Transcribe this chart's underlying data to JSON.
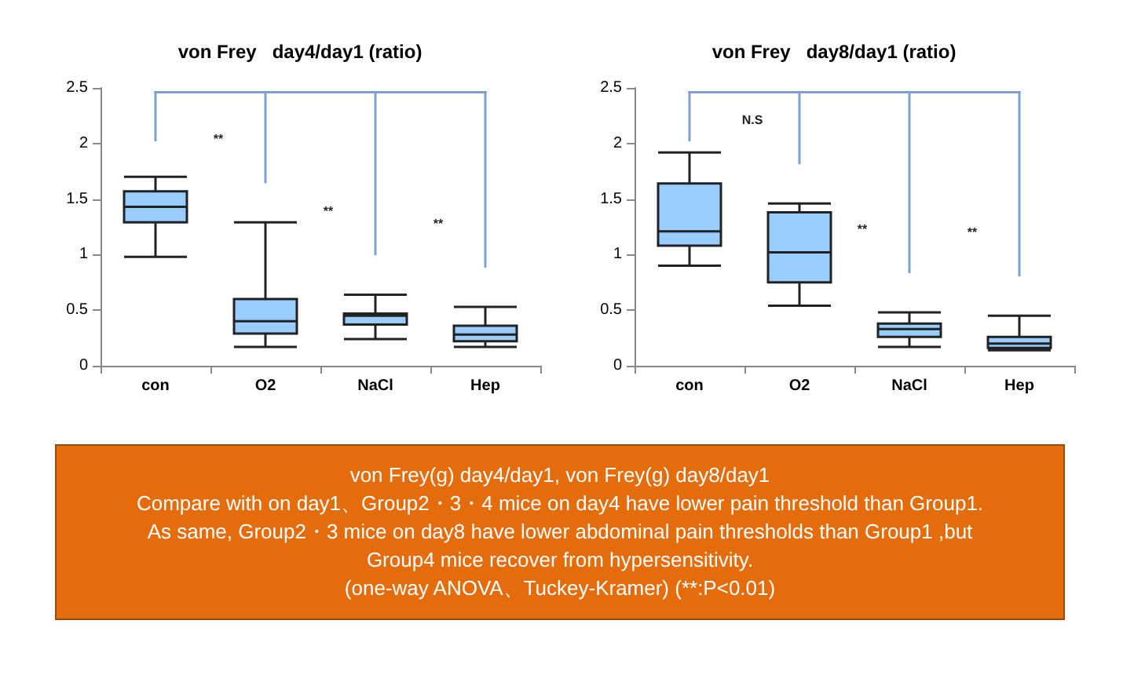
{
  "chart_data": [
    {
      "type": "box",
      "title": "von Frey   day4/day1 (ratio)",
      "categories": [
        "con",
        "O2",
        "NaCl",
        "Hep"
      ],
      "color": "#99ccff",
      "ylim": [
        0,
        2.5
      ],
      "yticks": [
        0,
        0.5,
        1,
        1.5,
        2,
        2.5
      ],
      "grid": false,
      "boxes": [
        {
          "low": 0.98,
          "q1": 1.29,
          "median": 1.43,
          "q3": 1.57,
          "high": 1.7
        },
        {
          "low": 0.17,
          "q1": 0.29,
          "median": 0.4,
          "q3": 0.6,
          "high": 1.29
        },
        {
          "low": 0.24,
          "q1": 0.37,
          "median": 0.45,
          "q3": 0.47,
          "high": 0.64
        },
        {
          "low": 0.17,
          "q1": 0.22,
          "median": 0.28,
          "q3": 0.36,
          "high": 0.53
        }
      ],
      "annotations": [
        "**",
        "**",
        "**"
      ]
    },
    {
      "type": "box",
      "title": "von Frey   day8/day1 (ratio)",
      "categories": [
        "con",
        "O2",
        "NaCl",
        "Hep"
      ],
      "color": "#99ccff",
      "ylim": [
        0,
        2.5
      ],
      "yticks": [
        0,
        0.5,
        1,
        1.5,
        2,
        2.5
      ],
      "grid": false,
      "boxes": [
        {
          "low": 0.9,
          "q1": 1.08,
          "median": 1.21,
          "q3": 1.64,
          "high": 1.92
        },
        {
          "low": 0.54,
          "q1": 0.75,
          "median": 1.02,
          "q3": 1.38,
          "high": 1.46
        },
        {
          "low": 0.17,
          "q1": 0.26,
          "median": 0.33,
          "q3": 0.38,
          "high": 0.48
        },
        {
          "low": 0.14,
          "q1": 0.16,
          "median": 0.2,
          "q3": 0.26,
          "high": 0.45
        }
      ],
      "annotations": [
        "N.S",
        "**",
        "**"
      ]
    },
    {
      "type": "other",
      "color": "#e46c0a",
      "annotations": [
        "von Frey(g) day4/day1,    von Frey(g) day8/day1",
        "Compare with on day1、Group2・3・4 mice on day4  have lower pain threshold  than Group1.",
        "As same, Group2・3 mice on day8  have lower abdominal  pain thresholds than Group1 ,but Group4 mice recover from hypersensitivity.",
        "(one-way  ANOVA、Tuckey-Kramer)          (**:P<0.01)"
      ]
    }
  ]
}
